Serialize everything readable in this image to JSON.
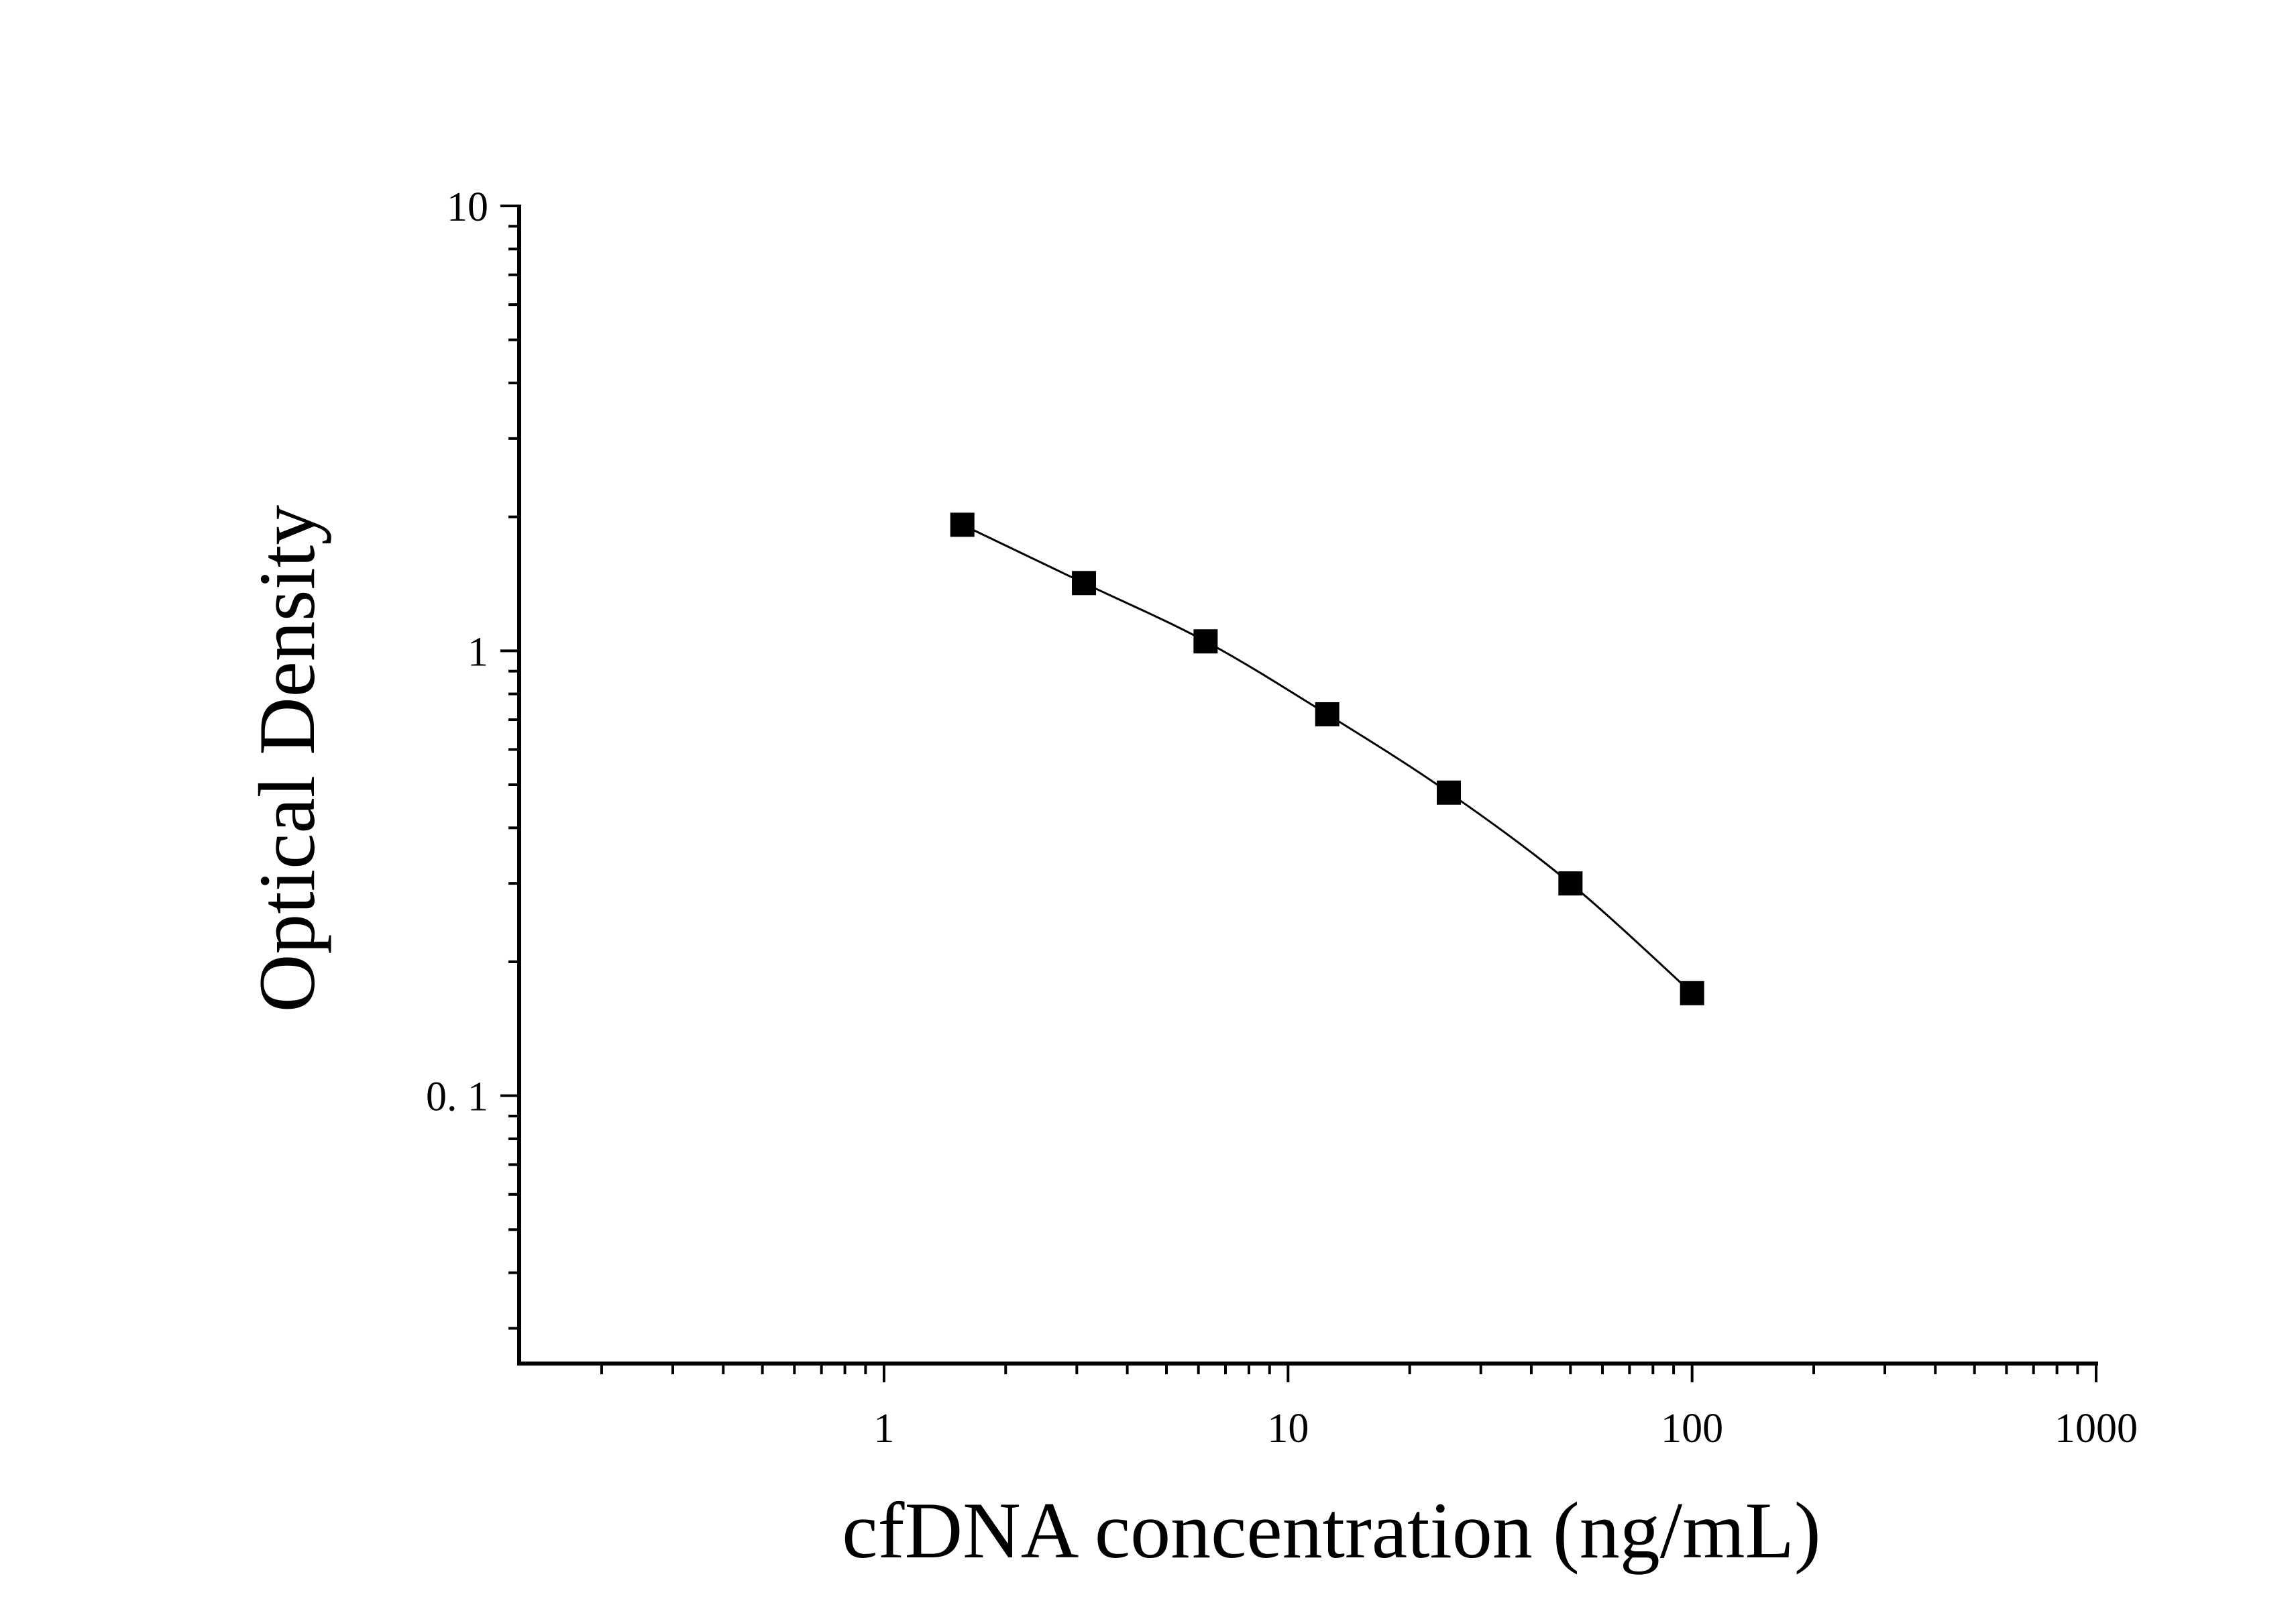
{
  "chart_data": {
    "type": "line",
    "title": "",
    "xlabel": "cfDNA concentration (ng/mL)",
    "ylabel": "Optical Density",
    "xscale": "log",
    "yscale": "log",
    "xlim": [
      0.125,
      1000
    ],
    "ylim": [
      0.025,
      10
    ],
    "xticks": [
      {
        "value": 1,
        "label": "1"
      },
      {
        "value": 10,
        "label": "10"
      },
      {
        "value": 100,
        "label": "100"
      },
      {
        "value": 1000,
        "label": "1000"
      }
    ],
    "yticks": [
      {
        "value": 0.1,
        "label": "0. 1"
      },
      {
        "value": 1,
        "label": "1"
      },
      {
        "value": 10,
        "label": "10"
      }
    ],
    "grid": false,
    "legend": "none",
    "marker": "square",
    "color": "#000000",
    "series": [
      {
        "x": [
          1.5625,
          3.125,
          6.25,
          12.5,
          25,
          50,
          100
        ],
        "y": [
          1.92,
          1.42,
          1.05,
          0.72,
          0.48,
          0.3,
          0.17
        ]
      }
    ]
  }
}
